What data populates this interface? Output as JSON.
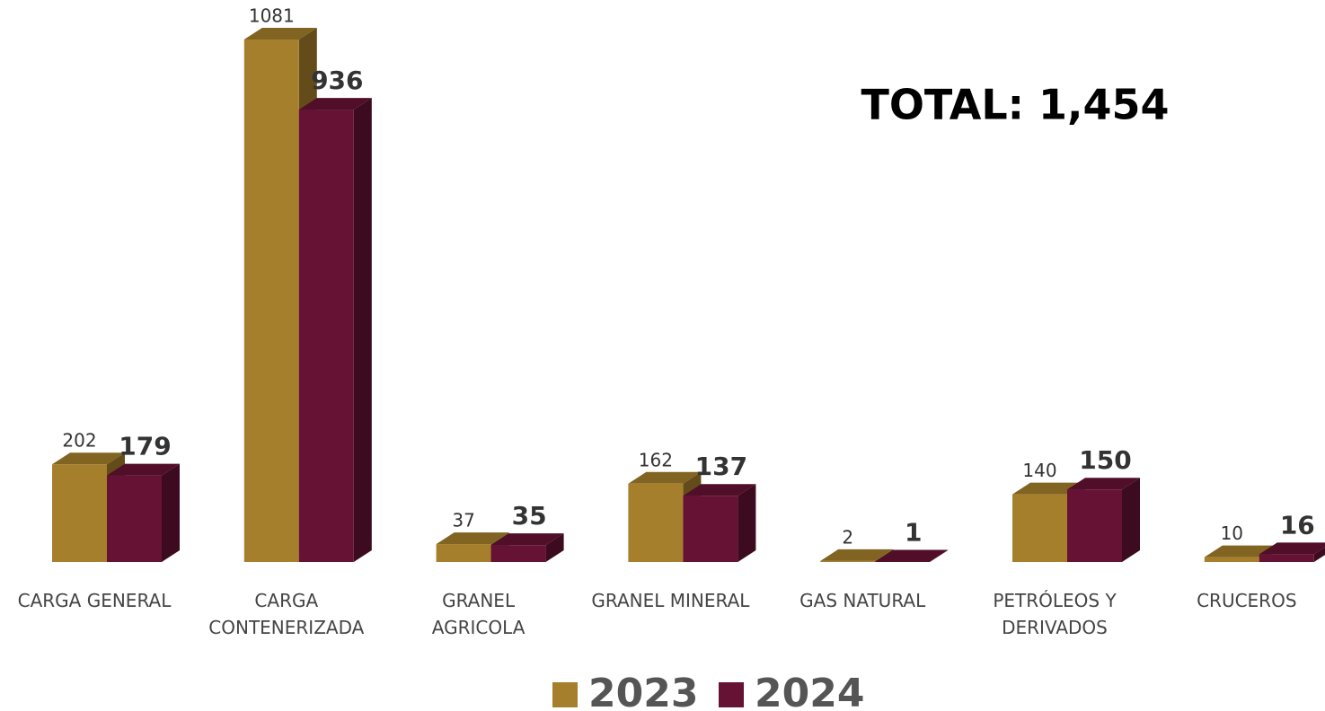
{
  "chart_data": {
    "type": "bar3d",
    "annotation": "TOTAL: 1,454",
    "categories": [
      "CARGA GENERAL",
      "CARGA\nCONTENERIZADA",
      "GRANEL\nAGRICOLA",
      "GRANEL MINERAL",
      "GAS NATURAL",
      "PETRÓLEOS Y\nDERIVADOS",
      "CRUCEROS"
    ],
    "series": [
      {
        "name": "2023",
        "color": "#a67f2c",
        "values": [
          202,
          1081,
          37,
          162,
          2,
          140,
          10
        ]
      },
      {
        "name": "2024",
        "color": "#661234",
        "values": [
          179,
          936,
          35,
          137,
          1,
          150,
          16
        ]
      }
    ],
    "legend": "bottom"
  }
}
